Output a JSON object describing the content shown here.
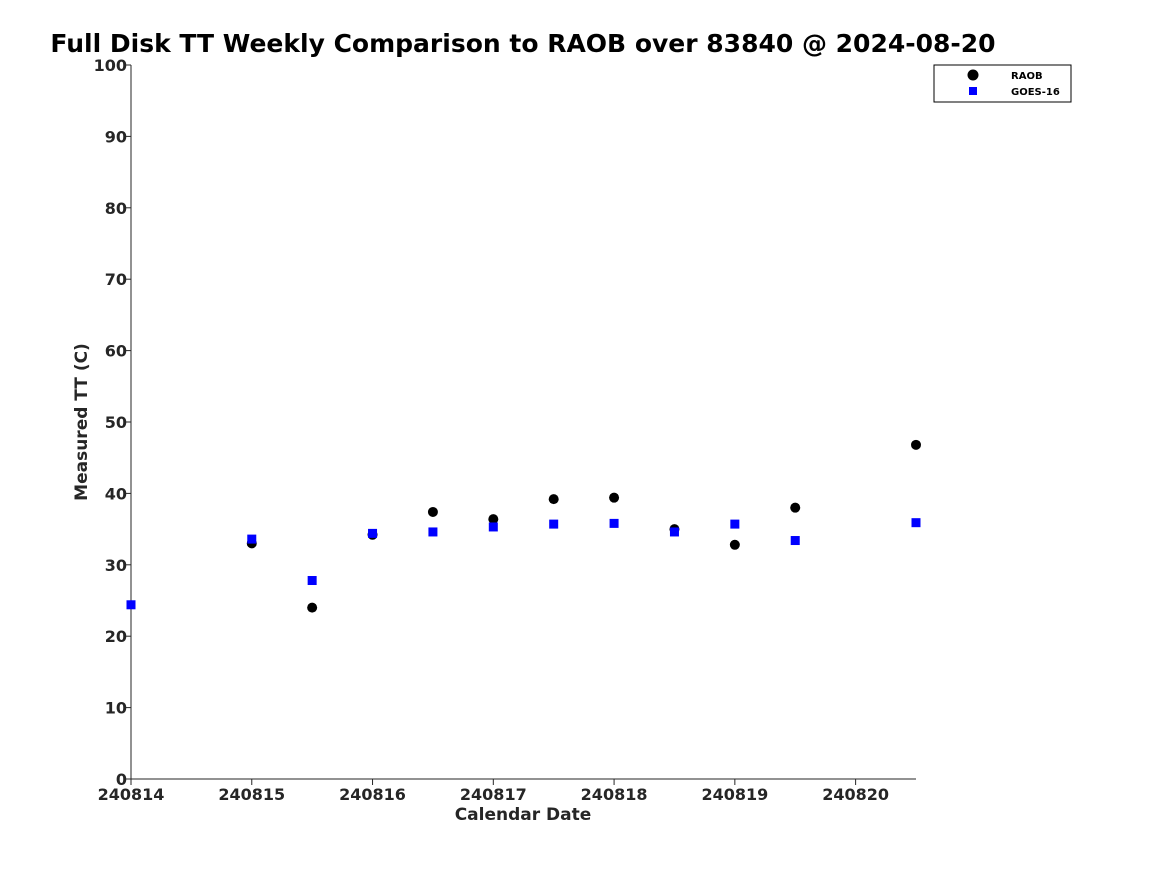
{
  "chart_data": {
    "type": "scatter",
    "title": "Full Disk TT Weekly Comparison to RAOB over 83840 @ 2024-08-20",
    "xlabel": "Calendar Date",
    "ylabel": "Measured TT (C)",
    "xlim": [
      "2024-08-14",
      "2024-08-20 12:00"
    ],
    "ylim": [
      0,
      100
    ],
    "x_ticks": [
      "240814",
      "240815",
      "240816",
      "240817",
      "240818",
      "240819",
      "240820"
    ],
    "y_ticks": [
      "0",
      "10",
      "20",
      "30",
      "40",
      "50",
      "60",
      "70",
      "80",
      "90",
      "100"
    ],
    "grid": false,
    "legend_position": "top-right",
    "series": [
      {
        "name": "RAOB",
        "marker": "circle",
        "color": "#000000",
        "points": [
          {
            "x": "2024-08-15 00:00",
            "y": 33.0
          },
          {
            "x": "2024-08-15 12:00",
            "y": 24.0
          },
          {
            "x": "2024-08-16 00:00",
            "y": 34.2
          },
          {
            "x": "2024-08-16 12:00",
            "y": 37.4
          },
          {
            "x": "2024-08-17 00:00",
            "y": 36.4
          },
          {
            "x": "2024-08-17 12:00",
            "y": 39.2
          },
          {
            "x": "2024-08-18 00:00",
            "y": 39.4
          },
          {
            "x": "2024-08-18 12:00",
            "y": 35.0
          },
          {
            "x": "2024-08-19 00:00",
            "y": 32.8
          },
          {
            "x": "2024-08-19 12:00",
            "y": 38.0
          },
          {
            "x": "2024-08-20 12:00",
            "y": 46.8
          }
        ]
      },
      {
        "name": "GOES-16",
        "marker": "square",
        "color": "#0000ff",
        "points": [
          {
            "x": "2024-08-14 00:00",
            "y": 24.4
          },
          {
            "x": "2024-08-15 00:00",
            "y": 33.6
          },
          {
            "x": "2024-08-15 12:00",
            "y": 27.8
          },
          {
            "x": "2024-08-16 00:00",
            "y": 34.4
          },
          {
            "x": "2024-08-16 12:00",
            "y": 34.6
          },
          {
            "x": "2024-08-17 00:00",
            "y": 35.3
          },
          {
            "x": "2024-08-17 12:00",
            "y": 35.7
          },
          {
            "x": "2024-08-18 00:00",
            "y": 35.8
          },
          {
            "x": "2024-08-18 12:00",
            "y": 34.6
          },
          {
            "x": "2024-08-19 00:00",
            "y": 35.7
          },
          {
            "x": "2024-08-19 12:00",
            "y": 33.4
          },
          {
            "x": "2024-08-20 12:00",
            "y": 35.9
          }
        ]
      }
    ]
  }
}
